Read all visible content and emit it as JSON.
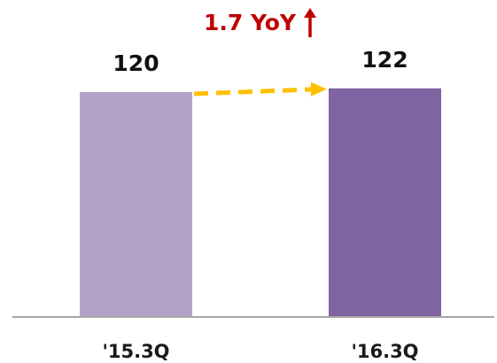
{
  "chart_data": {
    "type": "bar",
    "categories": [
      "'15.3Q",
      "'16.3Q"
    ],
    "values": [
      120,
      122
    ],
    "data_labels": [
      "120",
      "122"
    ],
    "bar_colors": [
      "#b3a2c8",
      "#8064a2"
    ],
    "annotation": {
      "text": "1.7 YoY",
      "arrow": "up",
      "color": "#c00000"
    },
    "trend_arrow_color": "#ffc000",
    "axis_color": "#a6a6a6",
    "grid": false,
    "legend": "none",
    "xlabel": "",
    "ylabel": ""
  }
}
